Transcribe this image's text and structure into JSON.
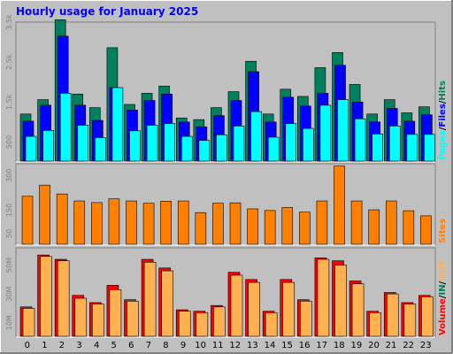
{
  "chart_data": {
    "type": "bar",
    "title": "Hourly usage for January 2025",
    "categories": [
      "0",
      "1",
      "2",
      "3",
      "4",
      "5",
      "6",
      "7",
      "8",
      "9",
      "10",
      "11",
      "12",
      "13",
      "14",
      "15",
      "16",
      "17",
      "18",
      "19",
      "20",
      "21",
      "22",
      "23"
    ],
    "colors": {
      "background": "#c0c0c0",
      "frame_light": "#ffffff",
      "frame_dark": "#808080",
      "title": "#0000ff",
      "hits": "#00805c",
      "files": "#0000ff",
      "pages": "#00ffff",
      "sites": "#ff8000",
      "volume": "#ff0000",
      "vol_in": "#ffb050",
      "slash": "#000000"
    },
    "panels": [
      {
        "id": "pages-files-hits",
        "ylim": [
          0,
          3500
        ],
        "yticks": [
          {
            "value": 500,
            "label": "500"
          },
          {
            "value": 1500,
            "label": "1.5k"
          },
          {
            "value": 2500,
            "label": "2.5k"
          },
          {
            "value": 3500,
            "label": "3.5k"
          }
        ],
        "legend": [
          {
            "key": "pages",
            "text": "Pages"
          },
          {
            "key": "files",
            "text": "Files"
          },
          {
            "key": "hits",
            "text": "Hits"
          }
        ],
        "series": [
          {
            "key": "hits",
            "values": [
              1200,
              1560,
              3560,
              1700,
              1360,
              2860,
              1440,
              1720,
              1900,
              1100,
              1060,
              1360,
              1760,
              2520,
              1200,
              1820,
              1640,
              2360,
              2740,
              1940,
              1200,
              1560,
              1230,
              1380
            ]
          },
          {
            "key": "files",
            "values": [
              1020,
              1420,
              3150,
              1420,
              1040,
              1860,
              1300,
              1540,
              1700,
              1000,
              880,
              1160,
              1540,
              2260,
              1000,
              1620,
              1400,
              1720,
              2420,
              1500,
              1000,
              1340,
              1020,
              1180
            ]
          },
          {
            "key": "pages",
            "values": [
              640,
              790,
              1720,
              920,
              610,
              1860,
              780,
              920,
              960,
              640,
              540,
              680,
              900,
              1260,
              620,
              960,
              840,
              1420,
              1560,
              1080,
              700,
              900,
              690,
              690
            ]
          }
        ]
      },
      {
        "id": "sites",
        "ylim": [
          0,
          350
        ],
        "yticks": [
          {
            "value": 50,
            "label": "50"
          },
          {
            "value": 150,
            "label": "150"
          },
          {
            "value": 300,
            "label": "300"
          }
        ],
        "legend": [
          {
            "key": "sites",
            "text": "Sites"
          }
        ],
        "series": [
          {
            "key": "sites",
            "values": [
              210,
              258,
              220,
              190,
              183,
              199,
              190,
              180,
              189,
              190,
              140,
              180,
              182,
              156,
              149,
              162,
              142,
              190,
              340,
              190,
              152,
              190,
              148,
              126
            ]
          }
        ]
      },
      {
        "id": "volume",
        "ylim": [
          0,
          62
        ],
        "yticks": [
          {
            "value": 10,
            "label": "10M"
          },
          {
            "value": 30,
            "label": "30M"
          },
          {
            "value": 50,
            "label": "50M"
          }
        ],
        "legend": [
          {
            "key": "volume",
            "text": "Volume"
          },
          {
            "key": "hits",
            "text": "IN"
          },
          {
            "key": "vol_in",
            "text": "OUT"
          }
        ],
        "series": [
          {
            "key": "volume",
            "values": [
              21,
              57,
              54,
              29,
              24,
              36,
              26,
              54,
              48,
              19,
              18,
              22,
              45,
              40,
              18,
              40,
              26,
              55,
              53,
              39,
              18,
              31,
              24,
              29
            ]
          },
          {
            "key": "vol_in",
            "values": [
              20,
              56,
              53,
              27,
              23,
              33,
              25,
              52,
              46,
              18,
              17,
              21,
              43,
              38,
              17,
              38,
              25,
              54,
              50,
              37,
              17,
              30,
              23,
              28
            ]
          }
        ]
      }
    ]
  }
}
